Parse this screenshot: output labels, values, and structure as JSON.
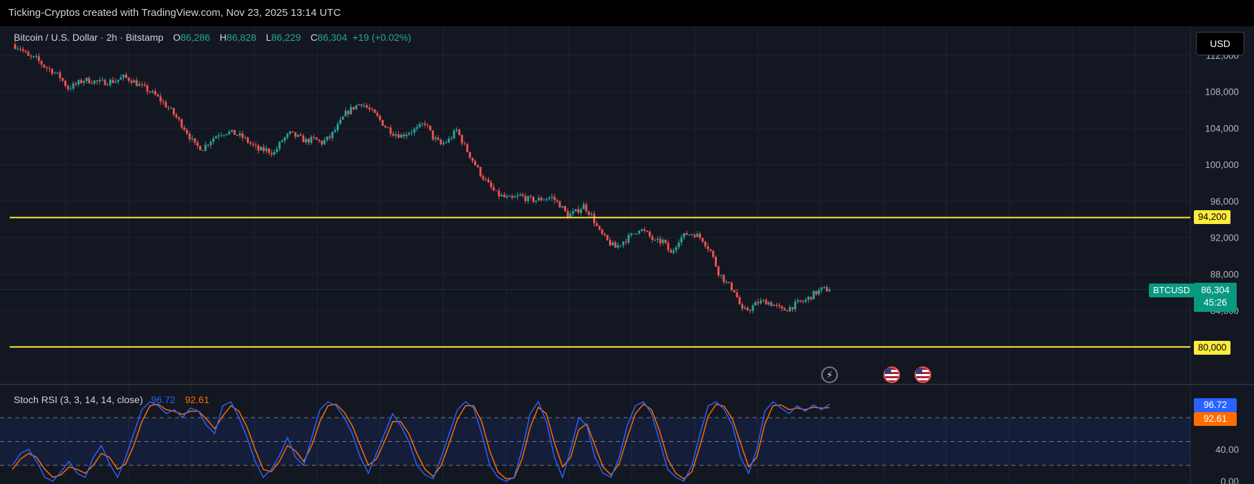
{
  "header": {
    "attribution": "Ticking-Cryptos created with TradingView.com, Nov 23, 2025 13:14 UTC"
  },
  "legend": {
    "title": "Bitcoin / U.S. Dollar · 2h · Bitstamp",
    "o_key": "O",
    "o_val": "86,286",
    "h_key": "H",
    "h_val": "86,828",
    "l_key": "L",
    "l_val": "86,229",
    "c_key": "C",
    "c_val": "86,304",
    "change": "+19 (+0.02%)"
  },
  "currency_button": "USD",
  "price_axis": {
    "ticks": [
      "112,000",
      "108,000",
      "104,000",
      "100,000",
      "96,000",
      "92,000",
      "88,000",
      "84,000"
    ]
  },
  "levels": [
    {
      "label": "94,200",
      "value": 94200,
      "color": "#ffeb3b"
    },
    {
      "label": "80,000",
      "value": 80000,
      "color": "#ffeb3b"
    }
  ],
  "last_price": {
    "symbol": "BTCUSD",
    "price": "86,304",
    "countdown": "45:26",
    "value": 86304,
    "color": "#089981"
  },
  "stoch": {
    "title": "Stoch RSI (3, 3, 14, 14, close)",
    "k_value": "96.72",
    "d_value": "92.61",
    "k_color": "#2962ff",
    "d_color": "#ff6d00",
    "ticks": [
      "40.00",
      "0.00"
    ]
  },
  "events": [
    {
      "icon": "flash-icon"
    },
    {
      "icon": "us-flag-icon"
    },
    {
      "icon": "us-flag-icon"
    }
  ],
  "colors": {
    "up": "#26a69a",
    "down": "#ef5350",
    "background": "#131722",
    "grid": "#1f2330"
  },
  "chart_data": [
    {
      "type": "candlestick",
      "title": "Bitcoin / U.S. Dollar · 2h · Bitstamp",
      "ylim": [
        80000,
        113000
      ],
      "close_path": [
        [
          0,
          113200
        ],
        [
          3,
          112800
        ],
        [
          6,
          111800
        ],
        [
          9,
          111600
        ],
        [
          12,
          110800
        ],
        [
          15,
          110300
        ],
        [
          18,
          109600
        ],
        [
          21,
          108400
        ],
        [
          24,
          108800
        ],
        [
          27,
          109300
        ],
        [
          30,
          109200
        ],
        [
          33,
          109000
        ],
        [
          36,
          109100
        ],
        [
          39,
          109200
        ],
        [
          42,
          109600
        ],
        [
          45,
          109300
        ],
        [
          48,
          108700
        ],
        [
          51,
          108200
        ],
        [
          54,
          107600
        ],
        [
          57,
          106800
        ],
        [
          60,
          105900
        ],
        [
          63,
          104800
        ],
        [
          66,
          103600
        ],
        [
          69,
          102100
        ],
        [
          72,
          101800
        ],
        [
          75,
          102700
        ],
        [
          78,
          103400
        ],
        [
          81,
          103600
        ],
        [
          84,
          103400
        ],
        [
          87,
          103000
        ],
        [
          90,
          102300
        ],
        [
          93,
          101600
        ],
        [
          96,
          101600
        ],
        [
          99,
          101300
        ],
        [
          102,
          102700
        ],
        [
          105,
          103400
        ],
        [
          108,
          103000
        ],
        [
          111,
          102600
        ],
        [
          114,
          102800
        ],
        [
          117,
          102400
        ],
        [
          120,
          103000
        ],
        [
          123,
          104200
        ],
        [
          126,
          105600
        ],
        [
          129,
          106300
        ],
        [
          132,
          106800
        ],
        [
          135,
          106000
        ],
        [
          138,
          105200
        ],
        [
          141,
          104200
        ],
        [
          144,
          103500
        ],
        [
          147,
          103200
        ],
        [
          150,
          103600
        ],
        [
          153,
          103900
        ],
        [
          156,
          104600
        ],
        [
          159,
          103000
        ],
        [
          162,
          102200
        ],
        [
          165,
          102700
        ],
        [
          168,
          103800
        ],
        [
          171,
          102000
        ],
        [
          174,
          100500
        ],
        [
          177,
          99000
        ],
        [
          180,
          97800
        ],
        [
          183,
          96800
        ],
        [
          186,
          96400
        ],
        [
          189,
          96200
        ],
        [
          192,
          96600
        ],
        [
          195,
          96200
        ],
        [
          198,
          96100
        ],
        [
          201,
          96300
        ],
        [
          204,
          96400
        ],
        [
          207,
          95600
        ],
        [
          210,
          94400
        ],
        [
          213,
          94800
        ],
        [
          216,
          95500
        ],
        [
          219,
          94400
        ],
        [
          222,
          92600
        ],
        [
          225,
          91600
        ],
        [
          228,
          90900
        ],
        [
          231,
          91600
        ],
        [
          234,
          92200
        ],
        [
          237,
          93000
        ],
        [
          240,
          92400
        ],
        [
          243,
          91500
        ],
        [
          246,
          91600
        ],
        [
          249,
          90200
        ],
        [
          252,
          91800
        ],
        [
          255,
          92400
        ],
        [
          258,
          92400
        ],
        [
          261,
          91800
        ],
        [
          264,
          90500
        ],
        [
          267,
          88200
        ],
        [
          270,
          87000
        ],
        [
          273,
          86200
        ],
        [
          276,
          83900
        ],
        [
          279,
          84200
        ],
        [
          282,
          84900
        ],
        [
          285,
          85000
        ],
        [
          288,
          84600
        ],
        [
          291,
          84000
        ],
        [
          294,
          84300
        ],
        [
          297,
          84800
        ],
        [
          300,
          85100
        ],
        [
          303,
          85800
        ],
        [
          306,
          86300
        ],
        [
          309,
          86304
        ]
      ],
      "horizontal_levels": [
        94200,
        80000
      ],
      "last_close": 86304
    },
    {
      "type": "line",
      "title": "Stoch RSI (3, 3, 14, 14, close)",
      "ylim": [
        0,
        100
      ],
      "series": [
        {
          "name": "K",
          "color": "#2962ff",
          "values": [
            20,
            35,
            40,
            25,
            5,
            0,
            12,
            25,
            10,
            5,
            30,
            45,
            22,
            5,
            30,
            60,
            90,
            100,
            95,
            85,
            90,
            80,
            92,
            88,
            70,
            60,
            95,
            100,
            80,
            55,
            25,
            5,
            15,
            32,
            55,
            30,
            20,
            55,
            90,
            100,
            95,
            80,
            60,
            30,
            10,
            35,
            60,
            85,
            70,
            50,
            20,
            8,
            3,
            30,
            60,
            90,
            100,
            92,
            60,
            20,
            5,
            0,
            5,
            40,
            85,
            100,
            75,
            30,
            5,
            40,
            80,
            70,
            30,
            10,
            5,
            30,
            70,
            95,
            100,
            85,
            50,
            15,
            5,
            0,
            20,
            60,
            95,
            100,
            90,
            70,
            30,
            10,
            40,
            88,
            100,
            92,
            85,
            95,
            88,
            96,
            90,
            97
          ]
        },
        {
          "name": "D",
          "color": "#ff6d00",
          "values": [
            15,
            28,
            35,
            30,
            15,
            5,
            8,
            18,
            15,
            10,
            20,
            35,
            30,
            15,
            22,
            45,
            75,
            95,
            97,
            90,
            88,
            84,
            88,
            88,
            78,
            66,
            82,
            95,
            88,
            68,
            40,
            15,
            12,
            25,
            45,
            38,
            25,
            45,
            75,
            95,
            97,
            87,
            70,
            45,
            20,
            28,
            50,
            75,
            75,
            60,
            35,
            15,
            6,
            20,
            48,
            78,
            95,
            95,
            75,
            38,
            12,
            3,
            4,
            28,
            68,
            93,
            85,
            48,
            18,
            30,
            65,
            72,
            45,
            18,
            8,
            22,
            55,
            85,
            97,
            90,
            63,
            28,
            10,
            3,
            12,
            45,
            82,
            97,
            94,
            78,
            48,
            18,
            30,
            72,
            95,
            96,
            90,
            92,
            90,
            93,
            92,
            92.61
          ]
        }
      ]
    }
  ]
}
